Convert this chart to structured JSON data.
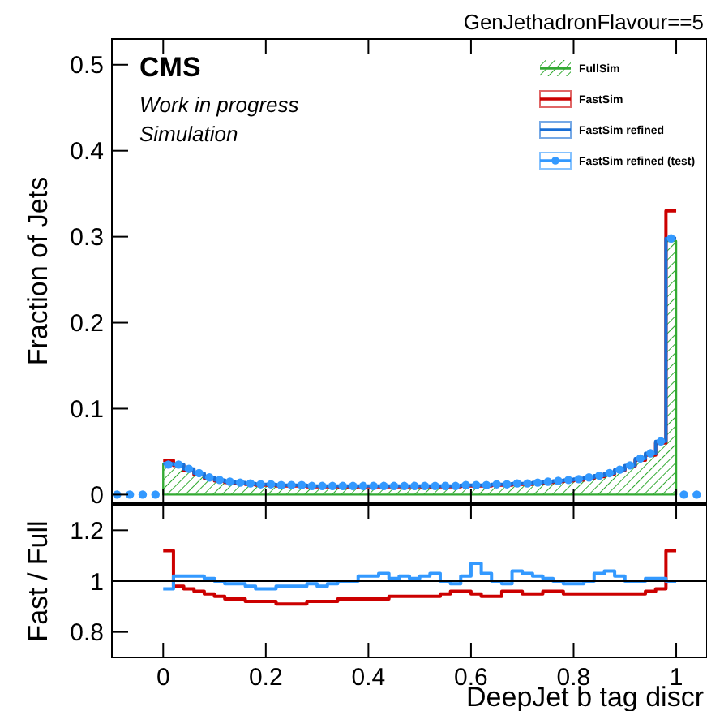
{
  "chart_data": [
    {
      "type": "step",
      "title": "GenJethadronFlavour==5",
      "ylabel": "Fraction of Jets",
      "annotations": [
        "CMS",
        "Work in progress",
        "Simulation"
      ],
      "legend": "top right",
      "tick_labels": "y",
      "xlim": [
        -0.1,
        1.06
      ],
      "ylim": [
        -0.01,
        0.53
      ],
      "xticks": [
        0,
        0.2,
        0.4,
        0.6,
        0.8,
        1
      ],
      "yticks": [
        0,
        0.1,
        0.2,
        0.3,
        0.4,
        0.5
      ],
      "x": [
        0,
        0.02,
        0.04,
        0.06,
        0.08,
        0.1,
        0.12,
        0.14,
        0.16,
        0.18,
        0.2,
        0.22,
        0.24,
        0.26,
        0.28,
        0.3,
        0.32,
        0.34,
        0.36,
        0.38,
        0.4,
        0.42,
        0.44,
        0.46,
        0.48,
        0.5,
        0.52,
        0.54,
        0.56,
        0.58,
        0.6,
        0.62,
        0.64,
        0.66,
        0.68,
        0.7,
        0.72,
        0.74,
        0.76,
        0.78,
        0.8,
        0.82,
        0.84,
        0.86,
        0.88,
        0.9,
        0.92,
        0.94,
        0.96,
        0.98,
        1
      ],
      "series": [
        {
          "name": "FullSim",
          "type": "area",
          "color": "#33aa33",
          "values": [
            0.036,
            0.035,
            0.03,
            0.025,
            0.02,
            0.017,
            0.015,
            0.014,
            0.013,
            0.012,
            0.012,
            0.011,
            0.011,
            0.011,
            0.01,
            0.01,
            0.01,
            0.01,
            0.01,
            0.01,
            0.01,
            0.01,
            0.01,
            0.01,
            0.01,
            0.01,
            0.01,
            0.01,
            0.01,
            0.011,
            0.011,
            0.011,
            0.012,
            0.012,
            0.013,
            0.013,
            0.014,
            0.015,
            0.016,
            0.017,
            0.018,
            0.02,
            0.022,
            0.025,
            0.029,
            0.034,
            0.042,
            0.048,
            0.06,
            0.295,
            0.295
          ]
        },
        {
          "name": "FastSim",
          "type": "step",
          "color": "#cc0000",
          "values": [
            0.04,
            0.034,
            0.028,
            0.023,
            0.019,
            0.016,
            0.014,
            0.013,
            0.012,
            0.011,
            0.011,
            0.01,
            0.01,
            0.01,
            0.009,
            0.009,
            0.009,
            0.009,
            0.009,
            0.009,
            0.009,
            0.009,
            0.009,
            0.009,
            0.009,
            0.009,
            0.009,
            0.009,
            0.009,
            0.01,
            0.01,
            0.01,
            0.011,
            0.011,
            0.012,
            0.012,
            0.013,
            0.014,
            0.015,
            0.016,
            0.017,
            0.019,
            0.021,
            0.024,
            0.028,
            0.033,
            0.04,
            0.046,
            0.06,
            0.33,
            0.33
          ]
        },
        {
          "name": "FastSim refined",
          "type": "step",
          "color": "#1a6fd6",
          "values": [
            0.036,
            0.035,
            0.03,
            0.025,
            0.02,
            0.017,
            0.015,
            0.014,
            0.013,
            0.012,
            0.012,
            0.011,
            0.011,
            0.011,
            0.01,
            0.01,
            0.01,
            0.01,
            0.01,
            0.01,
            0.01,
            0.01,
            0.01,
            0.01,
            0.01,
            0.01,
            0.01,
            0.01,
            0.01,
            0.011,
            0.011,
            0.011,
            0.012,
            0.012,
            0.013,
            0.013,
            0.014,
            0.015,
            0.016,
            0.017,
            0.018,
            0.02,
            0.022,
            0.025,
            0.029,
            0.034,
            0.042,
            0.048,
            0.062,
            0.298,
            0.298
          ]
        },
        {
          "name": "FastSim refined (test)",
          "type": "scatter",
          "marker": "circle",
          "color": "#3399ff",
          "x": [
            -0.09,
            -0.065,
            -0.04,
            -0.015,
            0.01,
            0.03,
            0.05,
            0.07,
            0.09,
            0.11,
            0.13,
            0.15,
            0.17,
            0.19,
            0.21,
            0.23,
            0.25,
            0.27,
            0.29,
            0.31,
            0.33,
            0.35,
            0.37,
            0.39,
            0.41,
            0.43,
            0.45,
            0.47,
            0.49,
            0.51,
            0.53,
            0.55,
            0.57,
            0.59,
            0.61,
            0.63,
            0.65,
            0.67,
            0.69,
            0.71,
            0.73,
            0.75,
            0.77,
            0.79,
            0.81,
            0.83,
            0.85,
            0.87,
            0.89,
            0.91,
            0.93,
            0.95,
            0.97,
            0.99,
            1.015,
            1.04
          ],
          "values": [
            0,
            0,
            0,
            0,
            0.035,
            0.035,
            0.03,
            0.025,
            0.02,
            0.017,
            0.015,
            0.014,
            0.013,
            0.012,
            0.012,
            0.011,
            0.011,
            0.011,
            0.01,
            0.01,
            0.01,
            0.01,
            0.01,
            0.01,
            0.01,
            0.01,
            0.01,
            0.01,
            0.01,
            0.01,
            0.01,
            0.01,
            0.01,
            0.011,
            0.011,
            0.011,
            0.012,
            0.012,
            0.013,
            0.013,
            0.014,
            0.015,
            0.016,
            0.017,
            0.018,
            0.02,
            0.022,
            0.025,
            0.029,
            0.034,
            0.042,
            0.048,
            0.062,
            0.298,
            0,
            0
          ]
        }
      ]
    },
    {
      "type": "step",
      "xlabel": "DeepJet b tag discr",
      "ylabel": "Fast / Full",
      "xlim": [
        -0.1,
        1.06
      ],
      "ylim": [
        0.7,
        1.3
      ],
      "xticks": [
        0,
        0.2,
        0.4,
        0.6,
        0.8,
        1
      ],
      "yticks": [
        0.8,
        1,
        1.2
      ],
      "ref_lines": [
        {
          "axis": "y",
          "value": 1,
          "color": "#000000"
        }
      ],
      "x": [
        0,
        0.02,
        0.04,
        0.06,
        0.08,
        0.1,
        0.12,
        0.14,
        0.16,
        0.18,
        0.2,
        0.22,
        0.24,
        0.26,
        0.28,
        0.3,
        0.32,
        0.34,
        0.36,
        0.38,
        0.4,
        0.42,
        0.44,
        0.46,
        0.48,
        0.5,
        0.52,
        0.54,
        0.56,
        0.58,
        0.6,
        0.62,
        0.64,
        0.66,
        0.68,
        0.7,
        0.72,
        0.74,
        0.76,
        0.78,
        0.8,
        0.82,
        0.84,
        0.86,
        0.88,
        0.9,
        0.92,
        0.94,
        0.96,
        0.98,
        1
      ],
      "series": [
        {
          "color": "#cc0000",
          "values": [
            1.12,
            0.98,
            0.97,
            0.96,
            0.95,
            0.94,
            0.93,
            0.93,
            0.92,
            0.92,
            0.92,
            0.91,
            0.91,
            0.91,
            0.92,
            0.92,
            0.92,
            0.93,
            0.93,
            0.93,
            0.93,
            0.93,
            0.94,
            0.94,
            0.94,
            0.94,
            0.94,
            0.95,
            0.96,
            0.96,
            0.95,
            0.94,
            0.94,
            0.96,
            0.96,
            0.95,
            0.95,
            0.96,
            0.96,
            0.95,
            0.95,
            0.95,
            0.95,
            0.95,
            0.95,
            0.95,
            0.95,
            0.96,
            0.97,
            1.12,
            1.12
          ]
        },
        {
          "color": "#3399ff",
          "values": [
            0.97,
            1.02,
            1.02,
            1.02,
            1.01,
            1.0,
            0.99,
            0.99,
            0.98,
            0.97,
            0.97,
            0.98,
            0.98,
            0.98,
            0.99,
            0.98,
            0.99,
            1.0,
            1.0,
            1.02,
            1.02,
            1.03,
            1.01,
            1.02,
            1.01,
            1.02,
            1.03,
            1.0,
            0.99,
            1.02,
            1.07,
            1.03,
            1.0,
            0.99,
            1.04,
            1.03,
            1.02,
            1.01,
            1.0,
            0.99,
            0.99,
            1.0,
            1.03,
            1.04,
            1.02,
            1.0,
            1.0,
            1.01,
            1.01,
            1.0,
            1.0
          ]
        }
      ]
    }
  ]
}
